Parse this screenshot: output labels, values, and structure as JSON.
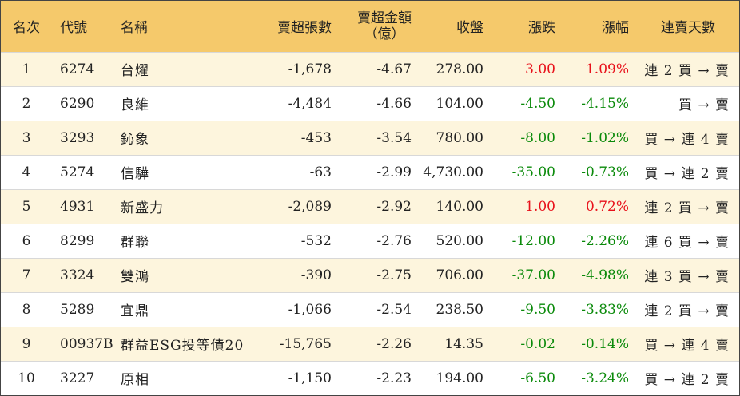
{
  "headers": {
    "rank": "名次",
    "code": "代號",
    "name": "名稱",
    "sell_shares": "賣超張數",
    "sell_amount_line1": "賣超金額",
    "sell_amount_line2": "（億）",
    "close": "收盤",
    "change": "漲跌",
    "change_pct": "漲幅",
    "consecutive": "連賣天數"
  },
  "rows": [
    {
      "rank": "1",
      "code": "6274",
      "name": "台燿",
      "sell_shares": "-1,678",
      "sell_amount": "-4.67",
      "close": "278.00",
      "change": "3.00",
      "change_pct": "1.09%",
      "consecutive": "連 2 買 → 賣",
      "direction": "up"
    },
    {
      "rank": "2",
      "code": "6290",
      "name": "良維",
      "sell_shares": "-4,484",
      "sell_amount": "-4.66",
      "close": "104.00",
      "change": "-4.50",
      "change_pct": "-4.15%",
      "consecutive": "買 → 賣",
      "direction": "down"
    },
    {
      "rank": "3",
      "code": "3293",
      "name": "鈊象",
      "sell_shares": "-453",
      "sell_amount": "-3.54",
      "close": "780.00",
      "change": "-8.00",
      "change_pct": "-1.02%",
      "consecutive": "買 → 連 4 賣",
      "direction": "down"
    },
    {
      "rank": "4",
      "code": "5274",
      "name": "信驊",
      "sell_shares": "-63",
      "sell_amount": "-2.99",
      "close": "4,730.00",
      "change": "-35.00",
      "change_pct": "-0.73%",
      "consecutive": "買 → 連 2 賣",
      "direction": "down"
    },
    {
      "rank": "5",
      "code": "4931",
      "name": "新盛力",
      "sell_shares": "-2,089",
      "sell_amount": "-2.92",
      "close": "140.00",
      "change": "1.00",
      "change_pct": "0.72%",
      "consecutive": "連 2 買 → 賣",
      "direction": "up"
    },
    {
      "rank": "6",
      "code": "8299",
      "name": "群聯",
      "sell_shares": "-532",
      "sell_amount": "-2.76",
      "close": "520.00",
      "change": "-12.00",
      "change_pct": "-2.26%",
      "consecutive": "連 6 買 → 賣",
      "direction": "down"
    },
    {
      "rank": "7",
      "code": "3324",
      "name": "雙鴻",
      "sell_shares": "-390",
      "sell_amount": "-2.75",
      "close": "706.00",
      "change": "-37.00",
      "change_pct": "-4.98%",
      "consecutive": "連 3 買 → 賣",
      "direction": "down"
    },
    {
      "rank": "8",
      "code": "5289",
      "name": "宜鼎",
      "sell_shares": "-1,066",
      "sell_amount": "-2.54",
      "close": "238.50",
      "change": "-9.50",
      "change_pct": "-3.83%",
      "consecutive": "連 2 買 → 賣",
      "direction": "down"
    },
    {
      "rank": "9",
      "code": "00937B",
      "name": "群益ESG投等債20",
      "sell_shares": "-15,765",
      "sell_amount": "-2.26",
      "close": "14.35",
      "change": "-0.02",
      "change_pct": "-0.14%",
      "consecutive": "買 → 連 4 賣",
      "direction": "down"
    },
    {
      "rank": "10",
      "code": "3227",
      "name": "原相",
      "sell_shares": "-1,150",
      "sell_amount": "-2.23",
      "close": "194.00",
      "change": "-6.50",
      "change_pct": "-3.24%",
      "consecutive": "買 → 連 2 賣",
      "direction": "down"
    }
  ],
  "colors": {
    "header_bg": "#f5c96b",
    "odd_row_bg": "#fdf5dd",
    "up": "#e8101a",
    "down": "#0a8a0a"
  }
}
